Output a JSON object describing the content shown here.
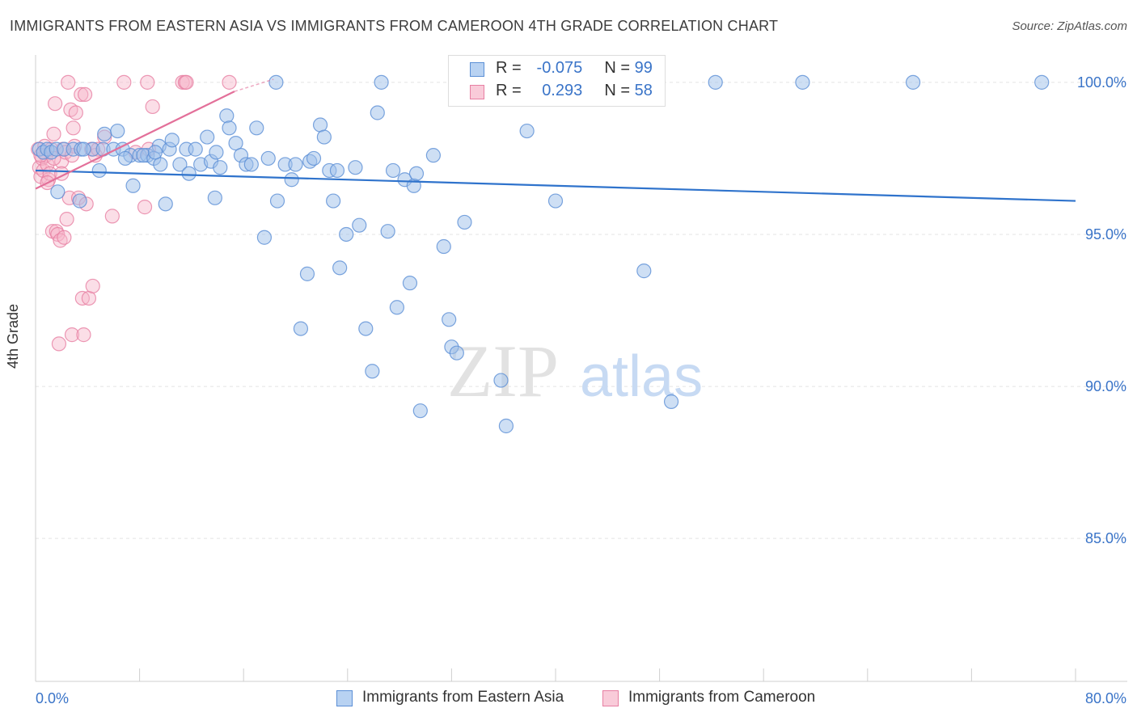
{
  "title": "IMMIGRANTS FROM EASTERN ASIA VS IMMIGRANTS FROM CAMEROON 4TH GRADE CORRELATION CHART",
  "source": "Source: ZipAtlas.com",
  "watermark": {
    "zip": "ZIP",
    "atlas": "atlas"
  },
  "legend": {
    "rows": [
      {
        "r_label": "R =",
        "r_value": "-0.075",
        "n_label": "N =",
        "n_value": "99"
      },
      {
        "r_label": "R =",
        "r_value": "0.293",
        "n_label": "N =",
        "n_value": "58"
      }
    ]
  },
  "colors": {
    "blue_fill": "#9dbfea",
    "blue_stroke": "#5b8fd6",
    "blue_line": "#2f73cc",
    "pink_fill": "#f6b6ca",
    "pink_stroke": "#e77fa2",
    "pink_line": "#e3709a",
    "axis_label": "#3a74c8",
    "grid": "#e3e3e3"
  },
  "chart_data": {
    "type": "scatter",
    "title": "IMMIGRANTS FROM EASTERN ASIA VS IMMIGRANTS FROM CAMEROON 4TH GRADE CORRELATION CHART",
    "xlabel": "",
    "ylabel": "4th Grade",
    "xlim": [
      0,
      80
    ],
    "ylim": [
      80.3,
      100.9
    ],
    "x_tick_labels": [
      "0.0%",
      "80.0%"
    ],
    "y_ticks": [
      85,
      90,
      95,
      100
    ],
    "y_tick_labels": [
      "85.0%",
      "90.0%",
      "95.0%",
      "100.0%"
    ],
    "grid": "horizontal-dashed",
    "legend_position": "bottom-center",
    "series": [
      {
        "name": "Immigrants from Eastern Asia",
        "color": "#9dbfea",
        "trend": {
          "x": [
            0,
            80
          ],
          "y": [
            97.1,
            96.1
          ]
        },
        "points": [
          [
            0.3,
            97.8
          ],
          [
            0.6,
            97.7
          ],
          [
            0.9,
            97.8
          ],
          [
            1.2,
            97.7
          ],
          [
            1.6,
            97.8
          ],
          [
            2.2,
            97.8
          ],
          [
            2.9,
            97.8
          ],
          [
            3.5,
            97.8
          ],
          [
            4.4,
            97.8
          ],
          [
            5.2,
            97.8
          ],
          [
            6.0,
            97.8
          ],
          [
            6.7,
            97.8
          ],
          [
            7.3,
            97.6
          ],
          [
            8.0,
            97.6
          ],
          [
            8.6,
            97.6
          ],
          [
            9.5,
            97.9
          ],
          [
            10.3,
            97.8
          ],
          [
            11.6,
            97.8
          ],
          [
            12.3,
            97.8
          ],
          [
            1.7,
            96.4
          ],
          [
            3.4,
            96.1
          ],
          [
            4.9,
            97.1
          ],
          [
            5.3,
            98.3
          ],
          [
            6.3,
            98.4
          ],
          [
            6.9,
            97.5
          ],
          [
            7.5,
            96.6
          ],
          [
            8.3,
            97.6
          ],
          [
            9.1,
            97.5
          ],
          [
            9.6,
            97.3
          ],
          [
            10.0,
            96.0
          ],
          [
            10.5,
            98.1
          ],
          [
            11.1,
            97.3
          ],
          [
            11.8,
            97.0
          ],
          [
            12.7,
            97.3
          ],
          [
            13.2,
            98.2
          ],
          [
            13.5,
            97.4
          ],
          [
            13.8,
            96.2
          ],
          [
            14.2,
            97.2
          ],
          [
            14.7,
            98.9
          ],
          [
            14.9,
            98.5
          ],
          [
            15.4,
            98.0
          ],
          [
            15.8,
            97.6
          ],
          [
            16.2,
            97.3
          ],
          [
            16.6,
            97.3
          ],
          [
            17.0,
            98.5
          ],
          [
            17.6,
            94.9
          ],
          [
            17.9,
            97.5
          ],
          [
            18.5,
            100.0
          ],
          [
            18.6,
            96.1
          ],
          [
            19.2,
            97.3
          ],
          [
            19.7,
            96.8
          ],
          [
            20.4,
            91.9
          ],
          [
            20.9,
            93.7
          ],
          [
            21.1,
            97.4
          ],
          [
            21.4,
            97.5
          ],
          [
            21.9,
            98.6
          ],
          [
            22.2,
            98.2
          ],
          [
            22.6,
            97.1
          ],
          [
            22.9,
            96.1
          ],
          [
            23.2,
            97.1
          ],
          [
            23.4,
            93.9
          ],
          [
            23.9,
            95.0
          ],
          [
            24.6,
            97.2
          ],
          [
            24.9,
            95.3
          ],
          [
            25.4,
            91.9
          ],
          [
            25.9,
            90.5
          ],
          [
            26.3,
            99.0
          ],
          [
            26.6,
            100.0
          ],
          [
            27.1,
            95.1
          ],
          [
            27.5,
            97.1
          ],
          [
            27.8,
            92.6
          ],
          [
            28.4,
            96.8
          ],
          [
            28.8,
            93.4
          ],
          [
            29.1,
            96.6
          ],
          [
            29.3,
            97.0
          ],
          [
            29.6,
            89.2
          ],
          [
            30.6,
            97.6
          ],
          [
            31.4,
            94.6
          ],
          [
            31.8,
            92.2
          ],
          [
            32.0,
            91.3
          ],
          [
            32.4,
            91.1
          ],
          [
            33.0,
            95.4
          ],
          [
            35.8,
            90.2
          ],
          [
            35.8,
            100.0
          ],
          [
            36.2,
            88.7
          ],
          [
            37.1,
            100.0
          ],
          [
            37.8,
            98.4
          ],
          [
            39.9,
            100.0
          ],
          [
            40.0,
            96.1
          ],
          [
            46.8,
            93.8
          ],
          [
            48.9,
            89.5
          ],
          [
            52.3,
            100.0
          ],
          [
            59.0,
            100.0
          ],
          [
            67.5,
            100.0
          ],
          [
            77.4,
            100.0
          ],
          [
            3.7,
            97.8
          ],
          [
            9.2,
            97.7
          ],
          [
            13.9,
            97.7
          ],
          [
            20.0,
            97.3
          ]
        ]
      },
      {
        "name": "Immigrants from Cameroon",
        "color": "#f6b6ca",
        "trend": {
          "x": [
            0,
            15.3
          ],
          "y": [
            96.5,
            99.7
          ]
        },
        "trend_dashed": {
          "x": [
            15.3,
            18.3
          ],
          "y": [
            99.7,
            100.1
          ]
        },
        "points": [
          [
            0.2,
            97.8
          ],
          [
            0.3,
            97.2
          ],
          [
            0.4,
            96.9
          ],
          [
            0.5,
            97.5
          ],
          [
            0.6,
            97.1
          ],
          [
            0.7,
            97.9
          ],
          [
            0.8,
            97.6
          ],
          [
            0.9,
            97.3
          ],
          [
            1.0,
            96.8
          ],
          [
            1.1,
            97.0
          ],
          [
            1.2,
            97.8
          ],
          [
            1.3,
            95.1
          ],
          [
            1.4,
            98.3
          ],
          [
            1.5,
            99.3
          ],
          [
            1.6,
            95.1
          ],
          [
            1.7,
            95.0
          ],
          [
            1.8,
            91.4
          ],
          [
            1.9,
            94.8
          ],
          [
            2.0,
            97.4
          ],
          [
            2.1,
            97.8
          ],
          [
            2.2,
            94.9
          ],
          [
            2.3,
            97.7
          ],
          [
            2.4,
            95.5
          ],
          [
            2.5,
            100.0
          ],
          [
            2.6,
            96.2
          ],
          [
            2.7,
            99.1
          ],
          [
            2.8,
            91.7
          ],
          [
            2.9,
            98.5
          ],
          [
            3.0,
            97.9
          ],
          [
            3.1,
            99.0
          ],
          [
            3.3,
            96.2
          ],
          [
            3.5,
            99.6
          ],
          [
            3.6,
            92.9
          ],
          [
            3.7,
            91.7
          ],
          [
            3.8,
            99.6
          ],
          [
            3.9,
            96.0
          ],
          [
            4.1,
            92.9
          ],
          [
            4.3,
            97.8
          ],
          [
            4.4,
            93.3
          ],
          [
            4.6,
            97.6
          ],
          [
            4.8,
            97.8
          ],
          [
            5.3,
            98.2
          ],
          [
            5.9,
            95.6
          ],
          [
            6.8,
            100.0
          ],
          [
            7.7,
            97.7
          ],
          [
            8.4,
            95.9
          ],
          [
            8.7,
            97.8
          ],
          [
            8.6,
            100.0
          ],
          [
            9.0,
            99.2
          ],
          [
            11.3,
            100.0
          ],
          [
            11.5,
            100.0
          ],
          [
            11.6,
            100.0
          ],
          [
            14.9,
            100.0
          ],
          [
            0.4,
            97.6
          ],
          [
            0.9,
            96.7
          ],
          [
            1.4,
            97.5
          ],
          [
            2.0,
            97.0
          ],
          [
            2.8,
            97.6
          ]
        ]
      }
    ]
  },
  "bottom_legend": {
    "items": [
      {
        "label": "Immigrants from Eastern Asia"
      },
      {
        "label": "Immigrants from Cameroon"
      }
    ]
  }
}
